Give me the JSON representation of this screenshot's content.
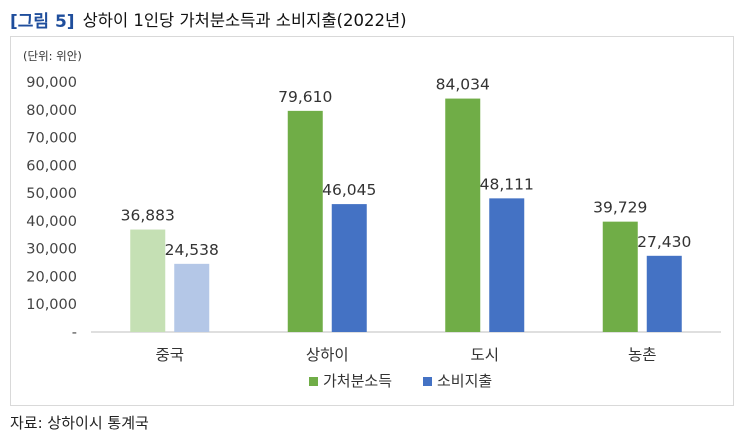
{
  "figure_label": "[그림 5]",
  "figure_title": "상하이 1인당 가처분소득과 소비지출(2022년)",
  "source": "자료: 상하이시 통계국",
  "chart_data": {
    "type": "bar",
    "unit_note": "(단위: 위안)",
    "categories": [
      "중국",
      "상하이",
      "도시",
      "농촌"
    ],
    "series": [
      {
        "name": "가처분소득",
        "values": [
          36883,
          79610,
          84034,
          39729
        ],
        "labels": [
          "36,883",
          "79,610",
          "84,034",
          "39,729"
        ],
        "color": "#70ad47"
      },
      {
        "name": "소비지출",
        "values": [
          24538,
          46045,
          48111,
          27430
        ],
        "labels": [
          "24,538",
          "46,045",
          "48,111",
          "27,430"
        ],
        "color": "#4472c4"
      }
    ],
    "first_category_colors": [
      "#c5e0b4",
      "#b4c7e7"
    ],
    "ylim": [
      0,
      90000
    ],
    "yticks": [
      0,
      10000,
      20000,
      30000,
      40000,
      50000,
      60000,
      70000,
      80000,
      90000
    ],
    "ytick_labels": [
      "-",
      "10,000",
      "20,000",
      "30,000",
      "40,000",
      "50,000",
      "60,000",
      "70,000",
      "80,000",
      "90,000"
    ],
    "grid": false,
    "legend_position": "bottom"
  }
}
